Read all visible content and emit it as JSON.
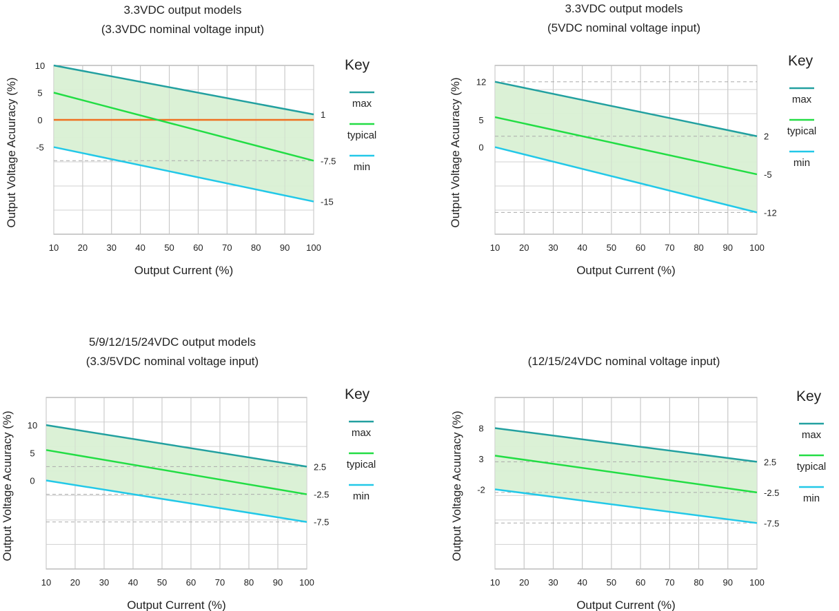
{
  "colors": {
    "max": "#22a0a0",
    "typical": "#22dd44",
    "min": "#22c8e8",
    "band": "#d9f0d4",
    "zero": "#f07020",
    "grid": "#bdbdbd",
    "dash": "#aaaaaa"
  },
  "chart_data": [
    {
      "type": "line",
      "title_lines": [
        "3.3VDC output models",
        "(3.3VDC nominal voltage input)"
      ],
      "xlabel": "Output Current (%)",
      "ylabel": "Output Voltage Acuuracy (%)",
      "x": [
        10,
        100
      ],
      "x_ticks": [
        10,
        20,
        30,
        40,
        50,
        60,
        70,
        80,
        90,
        100
      ],
      "y_ticks": [
        10,
        5,
        0,
        -5
      ],
      "ylim": [
        -21,
        10
      ],
      "series": [
        {
          "name": "max",
          "values": [
            10,
            1
          ]
        },
        {
          "name": "typical",
          "values": [
            5,
            -7.5
          ]
        },
        {
          "name": "min",
          "values": [
            -5,
            -15
          ]
        }
      ],
      "end_labels": [
        "1",
        "-7.5",
        "-15"
      ],
      "zero_line": true,
      "dashed_y": [
        -7.5
      ],
      "legend_title": "Key",
      "legend": [
        "max",
        "typical",
        "min"
      ]
    },
    {
      "type": "line",
      "title_lines": [
        "3.3VDC output models",
        "(5VDC nominal voltage input)"
      ],
      "xlabel": "Output Current (%)",
      "ylabel": "Output Voltage Acuuracy (%)",
      "x": [
        10,
        100
      ],
      "x_ticks": [
        10,
        20,
        30,
        40,
        50,
        60,
        70,
        80,
        90,
        100
      ],
      "y_ticks": [
        12,
        5,
        0
      ],
      "ylim": [
        -16,
        15
      ],
      "series": [
        {
          "name": "max",
          "values": [
            12,
            2
          ]
        },
        {
          "name": "typical",
          "values": [
            5.5,
            -5
          ]
        },
        {
          "name": "min",
          "values": [
            0,
            -12
          ]
        }
      ],
      "end_labels": [
        "2",
        "-5",
        "-12"
      ],
      "zero_line": false,
      "dashed_y": [
        12,
        2,
        -12
      ],
      "legend_title": "Key",
      "legend": [
        "max",
        "typical",
        "min"
      ]
    },
    {
      "type": "line",
      "title_lines": [
        "5/9/12/15/24VDC output models",
        "(3.3/5VDC nominal voltage input)"
      ],
      "xlabel": "Output Current (%)",
      "ylabel": "Output Voltage Acuuracy (%)",
      "x": [
        10,
        100
      ],
      "x_ticks": [
        10,
        20,
        30,
        40,
        50,
        60,
        70,
        80,
        90,
        100
      ],
      "y_ticks": [
        10,
        5,
        0
      ],
      "ylim": [
        -16,
        15
      ],
      "series": [
        {
          "name": "max",
          "values": [
            10,
            2.5
          ]
        },
        {
          "name": "typical",
          "values": [
            5.5,
            -2.5
          ]
        },
        {
          "name": "min",
          "values": [
            0,
            -7.5
          ]
        }
      ],
      "end_labels": [
        "2.5",
        "-2.5",
        "-7.5"
      ],
      "zero_line": false,
      "dashed_y": [
        2.5,
        -2.5,
        -7.5
      ],
      "legend_title": "Key",
      "legend": [
        "max",
        "typical",
        "min"
      ]
    },
    {
      "type": "line",
      "title_lines": [
        "",
        "(12/15/24VDC nominal voltage input)"
      ],
      "xlabel": "Output Current (%)",
      "ylabel": "Output Voltage Acuuracy (%)",
      "x": [
        10,
        100
      ],
      "x_ticks": [
        10,
        20,
        30,
        40,
        50,
        60,
        70,
        80,
        90,
        100
      ],
      "y_ticks": [
        8,
        3,
        -2
      ],
      "ylim": [
        -15,
        13
      ],
      "series": [
        {
          "name": "max",
          "values": [
            8,
            2.5
          ]
        },
        {
          "name": "typical",
          "values": [
            3.5,
            -2.5
          ]
        },
        {
          "name": "min",
          "values": [
            -2,
            -7.5
          ]
        }
      ],
      "end_labels": [
        "2.5",
        "-2.5",
        "-7.5"
      ],
      "zero_line": false,
      "dashed_y": [
        2.5,
        -2.5,
        -7.5
      ],
      "legend_title": "Key",
      "legend": [
        "max",
        "typical",
        "min"
      ]
    }
  ]
}
